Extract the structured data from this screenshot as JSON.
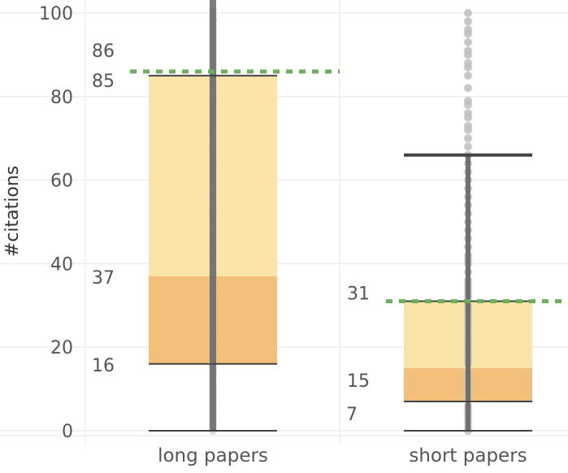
{
  "chart_data": {
    "type": "box",
    "ylabel": "#citations",
    "xlabel": "",
    "ylim": [
      0,
      100
    ],
    "yticks": [
      0,
      20,
      40,
      60,
      80,
      100
    ],
    "grid": "horizontal",
    "colors": {
      "upper_box": "#fae4a6",
      "lower_box": "#f2c07a",
      "points": "#bdbdbd",
      "whisker": "#555555",
      "mean_line": "#6aaf5a",
      "grid": "#eeeeee"
    },
    "categories": [
      "long papers",
      "short papers"
    ],
    "boxes": [
      {
        "category": "long papers",
        "lower_whisker": 0,
        "q1": 16,
        "median": 37,
        "q3": 85,
        "upper_whisker": 100,
        "mean": 86,
        "labels": [
          "86",
          "85",
          "37",
          "16"
        ]
      },
      {
        "category": "short papers",
        "lower_whisker": 0,
        "q1": 7,
        "median": 15,
        "q3": 31,
        "upper_whisker": 66,
        "mean": 31,
        "labels": [
          "31",
          "15",
          "7"
        ]
      }
    ],
    "points": [
      [],
      [
        0,
        1,
        2,
        3,
        4,
        5,
        6,
        8,
        9,
        10,
        11,
        12,
        13,
        14,
        16,
        17,
        18,
        19,
        20,
        21,
        22,
        23,
        24,
        25,
        26,
        27,
        28,
        29,
        30,
        32,
        33,
        34,
        35,
        36,
        38,
        40,
        41,
        42,
        44,
        46,
        48,
        50,
        52,
        54,
        56,
        58,
        60,
        62,
        64,
        66,
        68,
        70,
        72,
        73,
        75,
        76,
        78,
        79,
        82,
        85,
        87,
        88,
        90,
        91,
        93,
        95,
        96,
        98,
        100
      ]
    ]
  }
}
